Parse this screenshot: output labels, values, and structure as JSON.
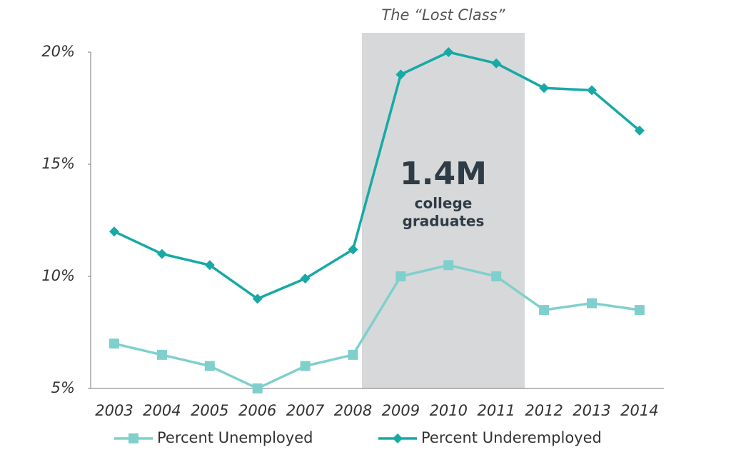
{
  "chart_data": {
    "type": "line",
    "categories": [
      "2003",
      "2004",
      "2005",
      "2006",
      "2007",
      "2008",
      "2009",
      "2010",
      "2011",
      "2012",
      "2013",
      "2014"
    ],
    "series": [
      {
        "name": "Percent Unemployed",
        "color": "#7fd0cc",
        "marker": "square",
        "values": [
          7.0,
          6.5,
          6.0,
          5.0,
          6.0,
          6.5,
          10.0,
          10.5,
          10.0,
          8.5,
          8.8,
          8.5
        ]
      },
      {
        "name": "Percent Underemployed",
        "color": "#17a9a6",
        "marker": "diamond",
        "values": [
          12.0,
          11.0,
          10.5,
          9.0,
          9.9,
          11.2,
          19.0,
          20.0,
          19.5,
          18.4,
          18.3,
          16.5
        ]
      }
    ],
    "ylim": [
      5,
      20
    ],
    "yticks": [
      {
        "value": 5,
        "label": "5%"
      },
      {
        "value": 10,
        "label": "10%"
      },
      {
        "value": 15,
        "label": "15%"
      },
      {
        "value": 20,
        "label": "20%"
      }
    ],
    "annotations": {
      "region_title": "The “Lost Class”",
      "headline": "1.4M",
      "caption": [
        "college",
        "graduates"
      ]
    },
    "grid": false
  }
}
